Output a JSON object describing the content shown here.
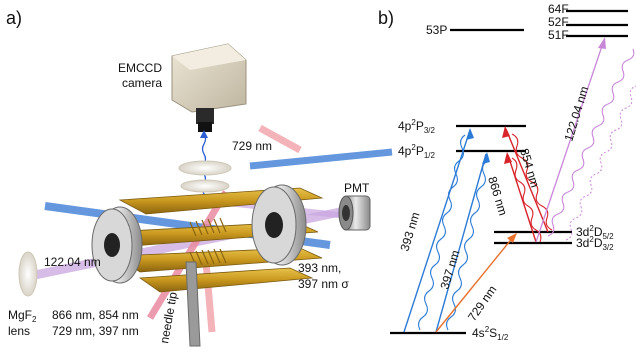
{
  "panel_a": {
    "label": "a)",
    "camera_line1": "EMCCD",
    "camera_line2": "camera",
    "pmt": "PMT",
    "laser_729": "729 nm",
    "laser_122": "122.04 nm",
    "mgf2_line1": "MgF",
    "mgf2_sub": "2",
    "mgf2_line2": "lens",
    "wl_line1": "866 nm, 854 nm",
    "wl_line2": "729 nm, 397 nm",
    "right_line1": "393 nm,",
    "right_line2": "397 nm σ",
    "needle": "needle tip"
  },
  "panel_b": {
    "label": "b)",
    "levels": {
      "53p": "53P",
      "64f": "64F",
      "52f": "52F",
      "51f": "51F",
      "p32_main": "4p",
      "p32_sup": "2",
      "p32_p": "P",
      "p32_sub": "3/2",
      "p12_main": "4p",
      "p12_sup": "2",
      "p12_p": "P",
      "p12_sub": "1/2",
      "d52_main": "3d",
      "d52_sup": "2",
      "d52_d": "D",
      "d52_sub": "5/2",
      "d32_main": "3d",
      "d32_sup": "2",
      "d32_d": "D",
      "d32_sub": "3/2",
      "s12_main": "4s",
      "s12_sup": "2",
      "s12_s": "S",
      "s12_sub": "1/2"
    },
    "transitions": {
      "t393": "393 nm",
      "t397": "397 nm",
      "t866": "866 nm",
      "t854": "854 nm",
      "t729": "729 nm",
      "t122": "122.04 nm"
    },
    "colors": {
      "blue": "#2c7bd6",
      "red": "#d8232a",
      "orange": "#e8702a",
      "violet": "#c987d8"
    }
  }
}
